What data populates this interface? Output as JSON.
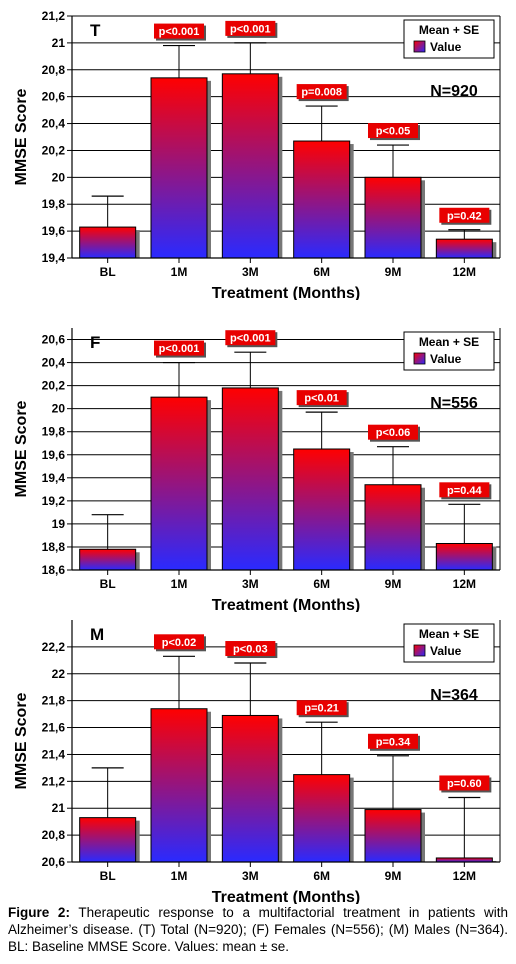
{
  "chart_data": [
    {
      "type": "bar",
      "panel_label": "T",
      "n_label": "N=920",
      "categories": [
        "BL",
        "1M",
        "3M",
        "6M",
        "9M",
        "12M"
      ],
      "values": [
        19.63,
        20.74,
        20.77,
        20.27,
        20.0,
        19.54
      ],
      "errors": [
        0.23,
        0.24,
        0.23,
        0.26,
        0.24,
        0.07
      ],
      "p_labels": [
        "",
        "p<0.001",
        "p<0.001",
        "p=0.008",
        "p<0.05",
        "p=0.42"
      ],
      "ylim": [
        19.4,
        21.2
      ],
      "yticks": [
        19.4,
        19.6,
        19.8,
        20,
        20.2,
        20.4,
        20.6,
        20.8,
        21,
        21.2
      ],
      "ytick_labels": [
        "19,4",
        "19,6",
        "19,8",
        "20",
        "20,2",
        "20,4",
        "20,6",
        "20,8",
        "21",
        "21,2"
      ],
      "ylabel": "MMSE Score",
      "xlabel": "Treatment (Months)",
      "legend": {
        "title": "Mean + SE",
        "entry": "Value",
        "placement": "top-right"
      }
    },
    {
      "type": "bar",
      "panel_label": "F",
      "n_label": "N=556",
      "categories": [
        "BL",
        "1M",
        "3M",
        "6M",
        "9M",
        "12M"
      ],
      "values": [
        18.78,
        20.1,
        20.18,
        19.65,
        19.34,
        18.83
      ],
      "errors": [
        0.3,
        0.3,
        0.31,
        0.32,
        0.33,
        0.34
      ],
      "p_labels": [
        "",
        "p<0.001",
        "p<0.001",
        "p<0.01",
        "p<0.06",
        "p=0.44"
      ],
      "ylim": [
        18.6,
        20.7
      ],
      "yticks": [
        18.6,
        18.8,
        19,
        19.2,
        19.4,
        19.6,
        19.8,
        20,
        20.2,
        20.4,
        20.6
      ],
      "ytick_labels": [
        "18,6",
        "18,8",
        "19",
        "19,2",
        "19,4",
        "19,6",
        "19,8",
        "20",
        "20,2",
        "20,4",
        "20,6"
      ],
      "ylabel": "MMSE Score",
      "xlabel": "Treatment (Months)",
      "legend": {
        "title": "Mean + SE",
        "entry": "Value",
        "placement": "top-right"
      }
    },
    {
      "type": "bar",
      "panel_label": "M",
      "n_label": "N=364",
      "categories": [
        "BL",
        "1M",
        "3M",
        "6M",
        "9M",
        "12M"
      ],
      "values": [
        20.93,
        21.74,
        21.69,
        21.25,
        20.99,
        20.63
      ],
      "errors": [
        0.37,
        0.39,
        0.39,
        0.39,
        0.4,
        0.45
      ],
      "p_labels": [
        "",
        "p<0.02",
        "p<0.03",
        "p=0.21",
        "p=0.34",
        "p=0.60"
      ],
      "ylim": [
        20.6,
        22.4
      ],
      "yticks": [
        20.6,
        20.8,
        21,
        21.2,
        21.4,
        21.6,
        21.8,
        22,
        22.2
      ],
      "ytick_labels": [
        "20,6",
        "20,8",
        "21",
        "21,2",
        "21,4",
        "21,6",
        "21,8",
        "22",
        "22,2"
      ],
      "ylabel": "MMSE Score",
      "xlabel": "Treatment (Months)",
      "legend": {
        "title": "Mean + SE",
        "entry": "Value",
        "placement": "top-right"
      }
    }
  ],
  "caption": {
    "label": "Figure 2:",
    "text": " Therapeutic response to a multifactorial treatment in patients with Alzheimer’s disease. (T) Total (N=920); (F) Females (N=556); (M) Males (N=364). BL: Baseline MMSE Score. Values: mean ± se."
  },
  "colors": {
    "bar_top": "#ff0000",
    "bar_bottom": "#2a2aff",
    "pbox_fill": "#e80000",
    "pbox_text": "#ffffff",
    "grid": "#000000"
  }
}
